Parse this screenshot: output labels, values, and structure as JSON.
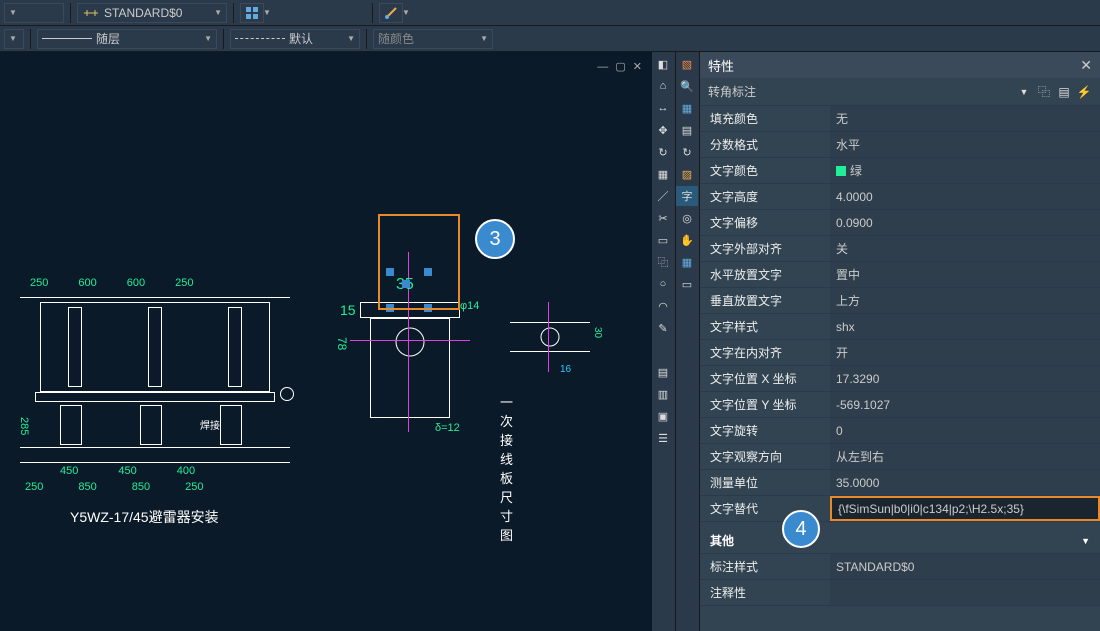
{
  "toolbar1": {
    "style_label": "STANDARD$0",
    "style_icon_color": "#e0c060"
  },
  "toolbar2": {
    "layer_label": "随层",
    "linetype_label": "默认",
    "color_label": "随颜色"
  },
  "canvas": {
    "title_bottom": "Y5WZ-17/45避雷器安装",
    "subfig_label": "一次接线板尺寸图",
    "dims_top": [
      "250",
      "600",
      "600",
      "250"
    ],
    "dims_bottom": [
      "250",
      "850",
      "850",
      "250"
    ],
    "dims_mid": [
      "450",
      "450",
      "400"
    ],
    "dim_v": "285",
    "weld": "焊接",
    "d2_35": "35",
    "d2_15": "15",
    "d2_78": "78",
    "d2_phi14": "φ14",
    "d2_d12": "δ=12",
    "d3_30": "30",
    "d3_16": "16"
  },
  "callouts": {
    "c3": "3",
    "c4": "4"
  },
  "panel": {
    "title": "特性",
    "subtitle": "转角标注",
    "properties": [
      {
        "label": "填充颜色",
        "value": "无"
      },
      {
        "label": "分数格式",
        "value": "水平"
      },
      {
        "label": "文字颜色",
        "value": "绿",
        "swatch": "#2e9"
      },
      {
        "label": "文字高度",
        "value": "4.0000"
      },
      {
        "label": "文字偏移",
        "value": "0.0900"
      },
      {
        "label": "文字外部对齐",
        "value": "关"
      },
      {
        "label": "水平放置文字",
        "value": "置中"
      },
      {
        "label": "垂直放置文字",
        "value": "上方"
      },
      {
        "label": "文字样式",
        "value": "shx"
      },
      {
        "label": "文字在内对齐",
        "value": "开"
      },
      {
        "label": "文字位置 X 坐标",
        "value": "17.3290"
      },
      {
        "label": "文字位置 Y 坐标",
        "value": "-569.1027"
      },
      {
        "label": "文字旋转",
        "value": "0"
      },
      {
        "label": "文字观察方向",
        "value": "从左到右"
      },
      {
        "label": "测量单位",
        "value": "35.0000"
      },
      {
        "label": "文字替代",
        "value": "{\\fSimSun|b0|i0|c134|p2;\\H2.5x;35}",
        "editing": true
      }
    ],
    "section2": "其他",
    "extras": [
      {
        "label": "标注样式",
        "value": "STANDARD$0"
      },
      {
        "label": "注释性",
        "value": ""
      }
    ]
  },
  "colors": {
    "callout_bg": "#3a8ad0",
    "highlight_border": "#e88a2a"
  }
}
